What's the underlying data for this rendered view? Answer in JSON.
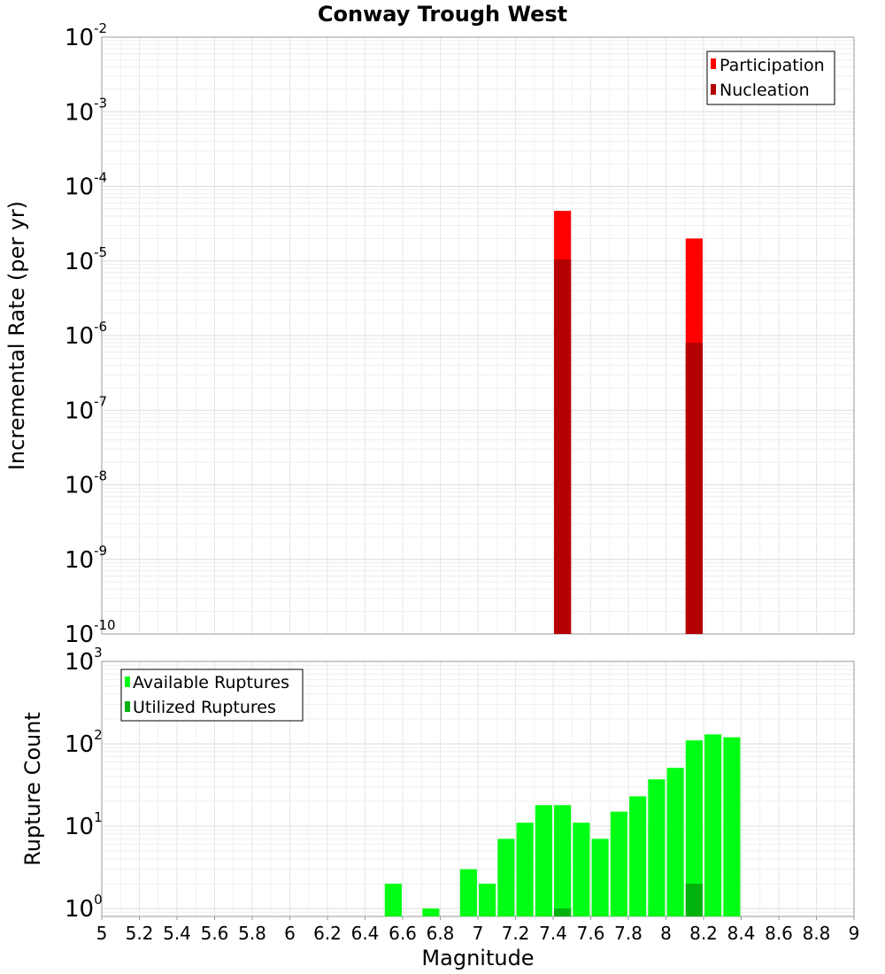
{
  "chart_data": [
    {
      "type": "bar",
      "title": "Conway Trough West",
      "xlabel": "",
      "ylabel": "Incremental Rate (per yr)",
      "yscale": "log",
      "ylim": [
        1e-10,
        0.01
      ],
      "xlim": [
        5,
        9
      ],
      "bar_width": 0.09,
      "grid": true,
      "legend_position": "top-right",
      "series": [
        {
          "name": "Participation",
          "color": "#ff0000",
          "x": [
            7.45,
            8.15
          ],
          "values": [
            4.7e-05,
            2e-05
          ]
        },
        {
          "name": "Nucleation",
          "color": "#b30000",
          "x": [
            7.45,
            8.15
          ],
          "values": [
            1.05e-05,
            8e-07
          ]
        }
      ],
      "y_ticks": [
        {
          "base": "10",
          "exp": "-2"
        },
        {
          "base": "10",
          "exp": "-3"
        },
        {
          "base": "10",
          "exp": "-4"
        },
        {
          "base": "10",
          "exp": "-5"
        },
        {
          "base": "10",
          "exp": "-6"
        },
        {
          "base": "10",
          "exp": "-7"
        },
        {
          "base": "10",
          "exp": "-8"
        },
        {
          "base": "10",
          "exp": "-9"
        },
        {
          "base": "10",
          "exp": "-10"
        }
      ]
    },
    {
      "type": "bar",
      "title": "",
      "xlabel": "Magnitude",
      "ylabel": "Rupture Count",
      "yscale": "log",
      "ylim": [
        0.8,
        1000
      ],
      "xlim": [
        5,
        9
      ],
      "bar_width": 0.09,
      "grid": true,
      "legend_position": "top-left",
      "series": [
        {
          "name": "Available Ruptures",
          "color": "#00ff14",
          "x": [
            6.55,
            6.75,
            6.95,
            7.05,
            7.15,
            7.25,
            7.35,
            7.45,
            7.55,
            7.65,
            7.75,
            7.85,
            7.95,
            8.05,
            8.15,
            8.25,
            8.35
          ],
          "values": [
            2,
            1,
            3,
            2,
            7,
            11,
            18,
            18,
            11,
            7,
            15,
            23,
            37,
            51,
            110,
            130,
            120
          ]
        },
        {
          "name": "Utilized Ruptures",
          "color": "#00b20e",
          "x": [
            7.45,
            8.15
          ],
          "values": [
            1,
            2
          ]
        }
      ],
      "x_ticks": [
        "5",
        "5.2",
        "5.4",
        "5.6",
        "5.8",
        "6",
        "6.2",
        "6.4",
        "6.6",
        "6.8",
        "7",
        "7.2",
        "7.4",
        "7.6",
        "7.8",
        "8",
        "8.2",
        "8.4",
        "8.6",
        "8.8",
        "9"
      ],
      "y_ticks": [
        {
          "base": "10",
          "exp": "3"
        },
        {
          "base": "10",
          "exp": "2"
        },
        {
          "base": "10",
          "exp": "1"
        },
        {
          "base": "10",
          "exp": "0"
        }
      ]
    }
  ]
}
